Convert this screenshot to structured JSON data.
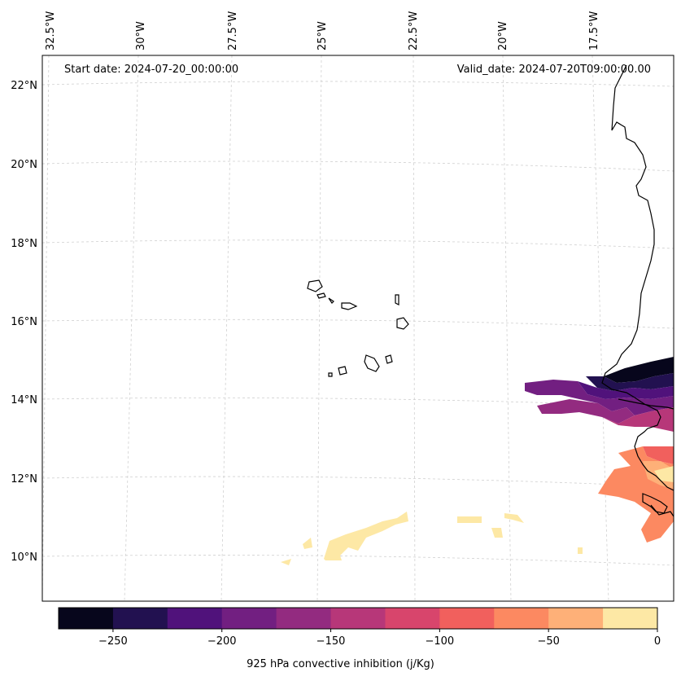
{
  "header": {
    "start_date": "Start date: 2024-07-20_00:00:00",
    "valid_date": "Valid_date: 2024-07-20T09:00:00.00"
  },
  "lon_labels": [
    "32.5°W",
    "30°W",
    "27.5°W",
    "25°W",
    "22.5°W",
    "20°W",
    "17.5°W"
  ],
  "lat_labels": [
    "22°N",
    "20°N",
    "18°N",
    "16°N",
    "14°N",
    "12°N",
    "10°N"
  ],
  "colorbar": {
    "label": "925 hPa convective inhibition (j/Kg)",
    "ticks": [
      "−250",
      "−200",
      "−150",
      "−100",
      "−50",
      "0"
    ],
    "colors": [
      "#07061c",
      "#221150",
      "#50127b",
      "#721f81",
      "#932b80",
      "#b73779",
      "#d8456c",
      "#f1605d",
      "#fc8961",
      "#feb078",
      "#fde8a5"
    ]
  },
  "map": {
    "land_color": "none",
    "coastline_color": "#000000",
    "grid": true
  }
}
